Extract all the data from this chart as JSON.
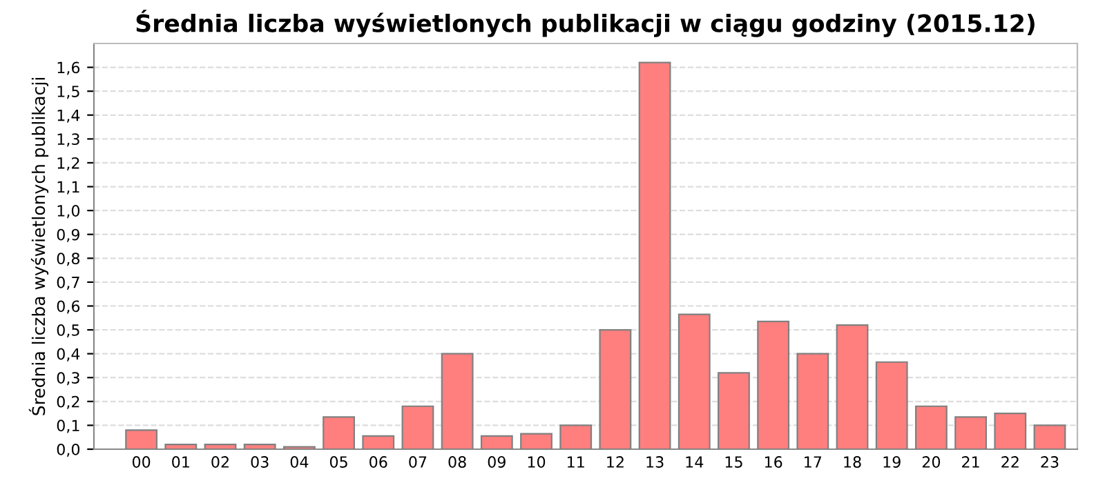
{
  "chart_data": {
    "type": "bar",
    "title": "Średnia liczba wyświetlonych publikacji w ciągu godziny (2015.12)",
    "ylabel": "Średnia liczba wyświetlonych publikacji",
    "categories": [
      "00",
      "01",
      "02",
      "03",
      "04",
      "05",
      "06",
      "07",
      "08",
      "09",
      "10",
      "11",
      "12",
      "13",
      "14",
      "15",
      "16",
      "17",
      "18",
      "19",
      "20",
      "21",
      "22",
      "23"
    ],
    "values": [
      0.08,
      0.02,
      0.02,
      0.02,
      0.01,
      0.135,
      0.055,
      0.18,
      0.4,
      0.055,
      0.065,
      0.1,
      0.5,
      1.62,
      0.565,
      0.32,
      0.535,
      0.4,
      0.52,
      0.365,
      0.18,
      0.135,
      0.15,
      0.1
    ],
    "color": "#ff7f7f",
    "ylim": [
      0,
      1.7
    ],
    "yticks": [
      {
        "value": 0,
        "label": "0,0"
      },
      {
        "value": 0.1,
        "label": "0,1"
      },
      {
        "value": 0.2,
        "label": "0,2"
      },
      {
        "value": 0.3,
        "label": "0,3"
      },
      {
        "value": 0.4,
        "label": "0,4"
      },
      {
        "value": 0.5,
        "label": "0,5"
      },
      {
        "value": 0.6,
        "label": "0,6"
      },
      {
        "value": 0.7,
        "label": "0,7"
      },
      {
        "value": 0.8,
        "label": "0,8"
      },
      {
        "value": 0.9,
        "label": "0,9"
      },
      {
        "value": 1.0,
        "label": "1,0"
      },
      {
        "value": 1.1,
        "label": "1,1"
      },
      {
        "value": 1.2,
        "label": "1,2"
      },
      {
        "value": 1.3,
        "label": "1,3"
      },
      {
        "value": 1.4,
        "label": "1,4"
      },
      {
        "value": 1.5,
        "label": "1,5"
      },
      {
        "value": 1.6,
        "label": "1,6"
      }
    ],
    "grid": "y"
  }
}
